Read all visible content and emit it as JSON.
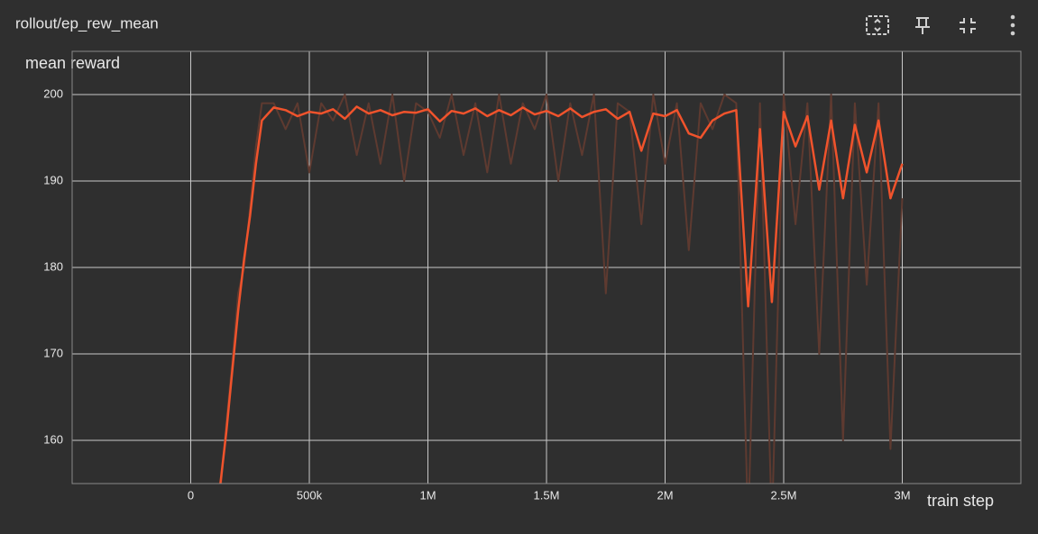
{
  "chart_data": {
    "type": "line",
    "title": "rollout/ep_rew_mean",
    "y_label": "mean reward",
    "x_label": "train step",
    "x": [
      125000,
      150000,
      175000,
      200000,
      225000,
      250000,
      275000,
      300000,
      350000,
      400000,
      450000,
      500000,
      550000,
      600000,
      650000,
      700000,
      750000,
      800000,
      850000,
      900000,
      950000,
      1000000,
      1050000,
      1100000,
      1150000,
      1200000,
      1250000,
      1300000,
      1350000,
      1400000,
      1450000,
      1500000,
      1550000,
      1600000,
      1650000,
      1700000,
      1750000,
      1800000,
      1850000,
      1900000,
      1950000,
      2000000,
      2050000,
      2100000,
      2150000,
      2200000,
      2250000,
      2300000,
      2350000,
      2400000,
      2450000,
      2500000,
      2550000,
      2600000,
      2650000,
      2700000,
      2750000,
      2800000,
      2850000,
      2900000,
      2950000,
      3000000
    ],
    "series": [
      {
        "color": "#5e3a30",
        "values": [
          154,
          162,
          169,
          177,
          180,
          187,
          194,
          199,
          199,
          196,
          199,
          191,
          199,
          197,
          200,
          193,
          199,
          192,
          200,
          190,
          199,
          198,
          195,
          200,
          193,
          199,
          191,
          200,
          192,
          199,
          196,
          200,
          190,
          199,
          193,
          200,
          177,
          199,
          198,
          185,
          200,
          192,
          199,
          182,
          199,
          196,
          200,
          199,
          150,
          199,
          150,
          200,
          185,
          199,
          170,
          200,
          160,
          199,
          178,
          199,
          159,
          188
        ]
      },
      {
        "color": "#f0532c",
        "values": [
          155,
          161,
          168,
          175,
          181,
          186,
          192,
          197,
          198.5,
          198.2,
          197.5,
          198,
          197.8,
          198.3,
          197.2,
          198.6,
          197.8,
          198.2,
          197.6,
          198,
          197.9,
          198.3,
          196.9,
          198.1,
          197.8,
          198.4,
          197.5,
          198.2,
          197.6,
          198.5,
          197.7,
          198.1,
          197.5,
          198.4,
          197.4,
          198,
          198.3,
          197.2,
          198,
          193.5,
          197.8,
          197.5,
          198.2,
          195.5,
          195,
          197,
          197.8,
          198.2,
          175.5,
          196,
          176,
          198,
          194,
          197.5,
          189,
          197,
          188,
          196.5,
          191,
          197,
          188,
          192
        ]
      }
    ],
    "xlim": [
      -500000,
      3500000
    ],
    "ylim": [
      155,
      205
    ],
    "xticks": [
      {
        "value": 0,
        "label": "0"
      },
      {
        "value": 500000,
        "label": "500k"
      },
      {
        "value": 1000000,
        "label": "1M"
      },
      {
        "value": 1500000,
        "label": "1.5M"
      },
      {
        "value": 2000000,
        "label": "2M"
      },
      {
        "value": 2500000,
        "label": "2.5M"
      },
      {
        "value": 3000000,
        "label": "3M"
      }
    ],
    "yticks": [
      160,
      170,
      180,
      190,
      200
    ],
    "grid": true
  }
}
